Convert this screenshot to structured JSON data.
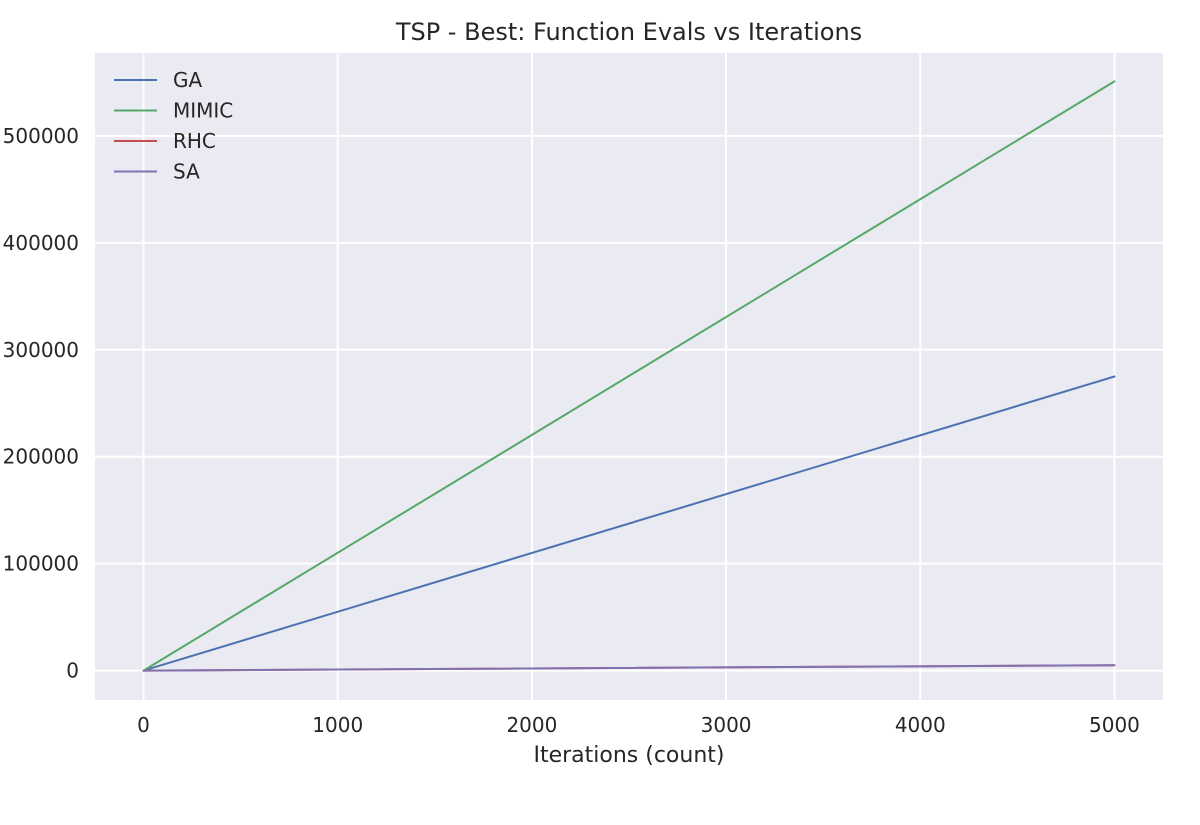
{
  "chart_data": {
    "type": "line",
    "title": "TSP - Best: Function Evals vs Iterations",
    "xlabel": "Iterations (count)",
    "ylabel": "",
    "xlim": [
      -250,
      5250
    ],
    "ylim": [
      -27500,
      577500
    ],
    "xticks": [
      0,
      1000,
      2000,
      3000,
      4000,
      5000
    ],
    "yticks": [
      0,
      100000,
      200000,
      300000,
      400000,
      500000
    ],
    "grid": true,
    "legend_position": "top-left",
    "series": [
      {
        "name": "GA",
        "color": "#4c72b0",
        "x": [
          0,
          5000
        ],
        "y": [
          0,
          275000
        ]
      },
      {
        "name": "MIMIC",
        "color": "#55a868",
        "x": [
          0,
          5000
        ],
        "y": [
          0,
          551000
        ]
      },
      {
        "name": "RHC",
        "color": "#c44e52",
        "x": [
          0,
          5000
        ],
        "y": [
          0,
          5000
        ]
      },
      {
        "name": "SA",
        "color": "#8172b2",
        "x": [
          0,
          5000
        ],
        "y": [
          0,
          5000
        ]
      }
    ]
  }
}
